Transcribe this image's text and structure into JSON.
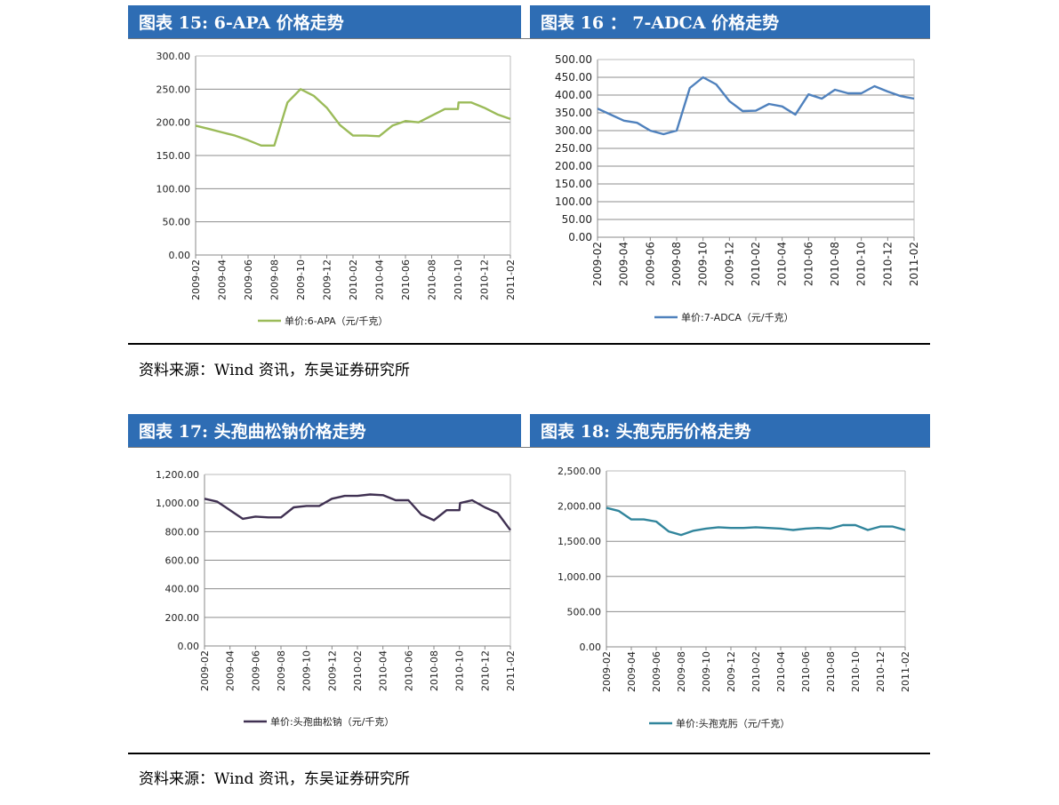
{
  "top_section": {
    "left_title": "图表 15:  6-APA 价格走势",
    "right_title": "图表 16 ： 7-ADCA 价格走势",
    "source": "资料来源：Wind 资讯，东吴证券研究所"
  },
  "bottom_section": {
    "left_title": "图表 17:  头孢曲松钠价格走势",
    "right_title": "图表 18:  头孢克肟价格走势",
    "source": "资料来源：Wind 资讯，东吴证券研究所"
  },
  "chart_data": [
    {
      "type": "line",
      "title": "",
      "xlabel": "",
      "ylabel": "",
      "ylim": [
        0,
        300
      ],
      "y_ticks": [
        "0.00",
        "50.00",
        "100.00",
        "150.00",
        "200.00",
        "250.00",
        "300.00"
      ],
      "x_ticks": [
        "2009-02",
        "2009-04",
        "2009-06",
        "2009-08",
        "2009-10",
        "2009-12",
        "2010-02",
        "2010-04",
        "2010-06",
        "2010-08",
        "2010-10",
        "2010-12",
        "2011-02"
      ],
      "grid": true,
      "legend_position": "bottom",
      "color": "#9BBB59",
      "series": [
        {
          "name": "单价:6-APA（元/千克）",
          "points": [
            [
              0,
              195
            ],
            [
              1,
              190
            ],
            [
              2,
              185
            ],
            [
              3,
              180
            ],
            [
              4,
              173
            ],
            [
              5,
              165
            ],
            [
              6,
              165
            ],
            [
              7,
              230
            ],
            [
              8,
              250
            ],
            [
              9,
              240
            ],
            [
              10,
              222
            ],
            [
              11,
              196
            ],
            [
              12,
              180
            ],
            [
              13,
              180
            ],
            [
              14,
              179
            ],
            [
              15,
              195
            ],
            [
              16,
              202
            ],
            [
              17,
              200
            ],
            [
              18,
              210
            ],
            [
              19,
              220
            ],
            [
              20,
              220
            ],
            [
              20.05,
              230
            ],
            [
              21,
              230
            ],
            [
              22,
              222
            ],
            [
              23,
              212
            ],
            [
              24,
              205
            ]
          ]
        }
      ]
    },
    {
      "type": "line",
      "title": "",
      "xlabel": "",
      "ylabel": "",
      "ylim": [
        0,
        500
      ],
      "y_ticks": [
        "0.00",
        "50.00",
        "100.00",
        "150.00",
        "200.00",
        "250.00",
        "300.00",
        "350.00",
        "400.00",
        "450.00",
        "500.00"
      ],
      "x_ticks": [
        "2009-02",
        "2009-04",
        "2009-06",
        "2009-08",
        "2009-10",
        "2009-12",
        "2010-02",
        "2010-04",
        "2010-06",
        "2010-08",
        "2010-10",
        "2010-12",
        "2011-02"
      ],
      "grid": true,
      "legend_position": "bottom",
      "color": "#4F81BD",
      "series": [
        {
          "name": "单价:7-ADCA（元/千克）",
          "points": [
            [
              0,
              362
            ],
            [
              1,
              345
            ],
            [
              2,
              328
            ],
            [
              3,
              322
            ],
            [
              4,
              300
            ],
            [
              5,
              290
            ],
            [
              6,
              300
            ],
            [
              7,
              420
            ],
            [
              8,
              450
            ],
            [
              9,
              430
            ],
            [
              10,
              383
            ],
            [
              11,
              355
            ],
            [
              12,
              356
            ],
            [
              13,
              375
            ],
            [
              14,
              368
            ],
            [
              15,
              345
            ],
            [
              16,
              402
            ],
            [
              17,
              390
            ],
            [
              18,
              415
            ],
            [
              19,
              405
            ],
            [
              20,
              405
            ],
            [
              21,
              425
            ],
            [
              22,
              410
            ],
            [
              23,
              397
            ],
            [
              24,
              390
            ]
          ]
        }
      ]
    },
    {
      "type": "line",
      "title": "",
      "xlabel": "",
      "ylabel": "",
      "ylim": [
        0,
        1200
      ],
      "y_ticks": [
        "0.00",
        "200.00",
        "400.00",
        "600.00",
        "800.00",
        "1,000.00",
        "1,200.00"
      ],
      "x_ticks": [
        "2009-02",
        "2009-04",
        "2009-06",
        "2009-08",
        "2009-10",
        "2009-12",
        "2010-02",
        "2010-04",
        "2010-06",
        "2010-08",
        "2010-10",
        "2010-12",
        "2011-02"
      ],
      "grid": true,
      "legend_position": "bottom",
      "color": "#403152",
      "series": [
        {
          "name": "单价:头孢曲松钠（元/千克）",
          "points": [
            [
              0,
              1030
            ],
            [
              1,
              1010
            ],
            [
              2,
              950
            ],
            [
              3,
              890
            ],
            [
              4,
              905
            ],
            [
              5,
              900
            ],
            [
              6,
              900
            ],
            [
              7,
              970
            ],
            [
              8,
              980
            ],
            [
              9,
              980
            ],
            [
              10,
              1030
            ],
            [
              11,
              1050
            ],
            [
              12,
              1050
            ],
            [
              13,
              1060
            ],
            [
              14,
              1055
            ],
            [
              15,
              1020
            ],
            [
              16,
              1020
            ],
            [
              17,
              920
            ],
            [
              18,
              880
            ],
            [
              19,
              950
            ],
            [
              20,
              950
            ],
            [
              20.05,
              1000
            ],
            [
              21,
              1020
            ],
            [
              22,
              970
            ],
            [
              23,
              930
            ],
            [
              24,
              810
            ]
          ]
        }
      ]
    },
    {
      "type": "line",
      "title": "",
      "xlabel": "",
      "ylabel": "",
      "ylim": [
        0,
        2500
      ],
      "y_ticks": [
        "0.00",
        "500.00",
        "1,000.00",
        "1,500.00",
        "2,000.00",
        "2,500.00"
      ],
      "x_ticks": [
        "2009-02",
        "2009-04",
        "2009-06",
        "2009-08",
        "2009-10",
        "2009-12",
        "2010-02",
        "2010-04",
        "2010-06",
        "2010-08",
        "2010-10",
        "2010-12",
        "2011-02"
      ],
      "grid": true,
      "legend_position": "bottom",
      "color": "#31859C",
      "series": [
        {
          "name": "单价:头孢克肟（元/千克）",
          "points": [
            [
              0,
              1975
            ],
            [
              1,
              1930
            ],
            [
              2,
              1810
            ],
            [
              3,
              1810
            ],
            [
              4,
              1780
            ],
            [
              5,
              1640
            ],
            [
              6,
              1590
            ],
            [
              7,
              1650
            ],
            [
              8,
              1680
            ],
            [
              9,
              1700
            ],
            [
              10,
              1690
            ],
            [
              11,
              1690
            ],
            [
              12,
              1700
            ],
            [
              13,
              1690
            ],
            [
              14,
              1680
            ],
            [
              15,
              1660
            ],
            [
              16,
              1680
            ],
            [
              17,
              1690
            ],
            [
              18,
              1680
            ],
            [
              19,
              1730
            ],
            [
              20,
              1730
            ],
            [
              21,
              1660
            ],
            [
              22,
              1710
            ],
            [
              23,
              1710
            ],
            [
              24,
              1660
            ]
          ]
        }
      ]
    }
  ]
}
